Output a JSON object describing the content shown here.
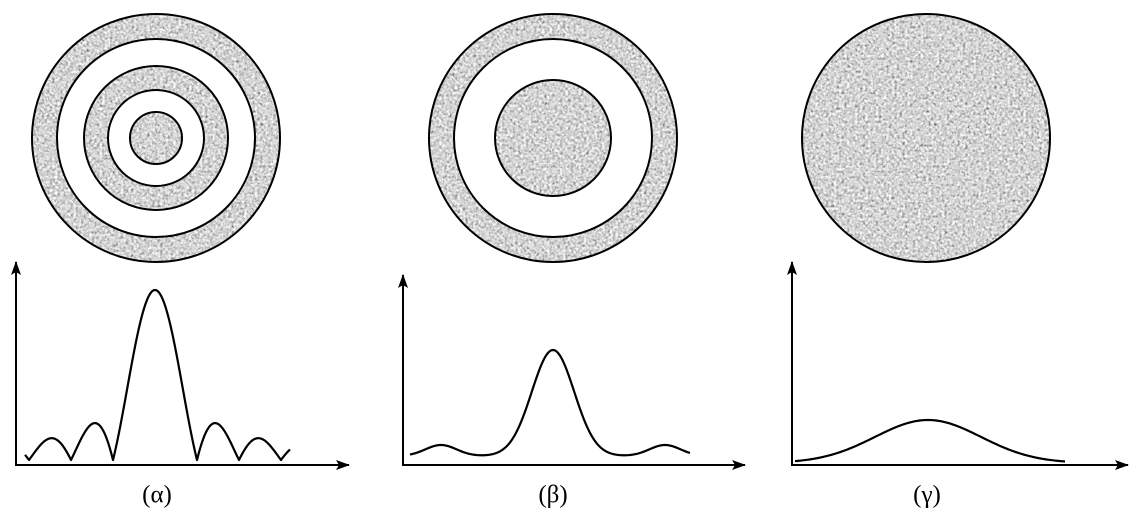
{
  "panels": [
    {
      "label": "(α)"
    },
    {
      "label": "(β)"
    },
    {
      "label": "(γ)"
    }
  ]
}
